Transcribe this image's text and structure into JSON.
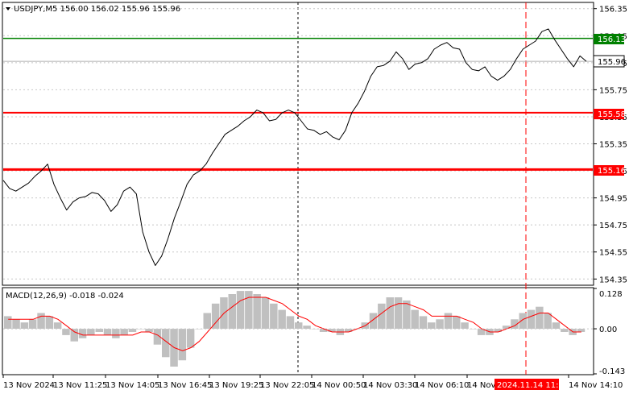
{
  "window": {
    "symbol_info": "USDJPY,M5  156.00 156.02 155.96 155.96"
  },
  "price_axis": {
    "ticks": [
      "156.35",
      "156.15",
      "155.95",
      "155.75",
      "155.55",
      "155.35",
      "155.15",
      "154.95",
      "154.75",
      "154.55",
      "154.35"
    ]
  },
  "price_labels": {
    "resistance": "156.13",
    "current": "155.96",
    "middle": "155.58",
    "support": "155.16"
  },
  "time_axis": {
    "labels": [
      "13 Nov 2024",
      "13 Nov 11:25",
      "13 Nov 14:05",
      "13 Nov 16:45",
      "13 Nov 19:25",
      "13 Nov 22:05",
      "14 Nov 00:50",
      "14 Nov 03:30",
      "14 Nov 06:10",
      "14 Nov",
      "14 Nov 14:10"
    ],
    "highlight": "2024.11.14 11:55"
  },
  "macd": {
    "title": "MACD(12,26,9) -0.018 -0.024",
    "ticks": [
      "0.128",
      "0.00",
      "-0.143"
    ]
  },
  "colors": {
    "price_line": "#000000",
    "resistance": "#008000",
    "support_levels": "#ff0000",
    "macd_hist": "#c0c0c0",
    "macd_signal": "#ff0000",
    "current_label_bg": "#ffffff",
    "highlight_bg": "#ff0000"
  },
  "chart_data": [
    {
      "type": "line",
      "series": [
        {
          "values": [
            155.08,
            155.02,
            155.0,
            155.03,
            155.06,
            155.11,
            155.15,
            155.2,
            155.05,
            154.95,
            154.86,
            154.92,
            154.95,
            154.96,
            154.99,
            154.98,
            154.93,
            154.85,
            154.9,
            155.0,
            155.03,
            154.98,
            154.7,
            154.55,
            154.45,
            154.52,
            154.65,
            154.8,
            154.92,
            155.05,
            155.12,
            155.15,
            155.2,
            155.28,
            155.35,
            155.42,
            155.45,
            155.48,
            155.52,
            155.55,
            155.6,
            155.58,
            155.52,
            155.53,
            155.58,
            155.6,
            155.58,
            155.52,
            155.46,
            155.45,
            155.42,
            155.44,
            155.4,
            155.38,
            155.45,
            155.58,
            155.65,
            155.74,
            155.85,
            155.92,
            155.93,
            155.96,
            156.03,
            155.98,
            155.9,
            155.94,
            155.95,
            155.98,
            156.05,
            156.08,
            156.1,
            156.06,
            156.05,
            155.95,
            155.9,
            155.89,
            155.92,
            155.85,
            155.82,
            155.85,
            155.9,
            155.98,
            156.05,
            156.08,
            156.11,
            156.18,
            156.2,
            156.12,
            156.05,
            155.98,
            155.92,
            156.0,
            155.96
          ]
        }
      ],
      "ylim": [
        154.31,
        156.39
      ],
      "gridlines": true
    },
    {
      "type": "bar",
      "title": "MACD(12,26,9) -0.018 -0.024",
      "series": [
        {
          "values": [
            0.04,
            0.03,
            0.02,
            0.03,
            0.05,
            0.04,
            0.02,
            -0.02,
            -0.04,
            -0.03,
            -0.02,
            -0.01,
            -0.02,
            -0.03,
            -0.02,
            -0.01,
            0.0,
            -0.01,
            -0.05,
            -0.09,
            -0.12,
            -0.1,
            -0.06,
            0.0,
            0.05,
            0.08,
            0.1,
            0.11,
            0.12,
            0.12,
            0.11,
            0.1,
            0.08,
            0.06,
            0.04,
            0.02,
            0.01,
            0.0,
            -0.01,
            -0.01,
            -0.02,
            -0.01,
            0.0,
            0.02,
            0.05,
            0.08,
            0.1,
            0.1,
            0.09,
            0.06,
            0.04,
            0.02,
            0.03,
            0.05,
            0.04,
            0.02,
            0.0,
            -0.02,
            -0.02,
            -0.01,
            0.01,
            0.03,
            0.05,
            0.06,
            0.07,
            0.05,
            0.02,
            -0.01,
            -0.02,
            -0.01
          ]
        },
        {
          "values": [
            0.03,
            0.03,
            0.03,
            0.03,
            0.04,
            0.04,
            0.03,
            0.01,
            -0.01,
            -0.02,
            -0.02,
            -0.02,
            -0.02,
            -0.02,
            -0.02,
            -0.02,
            -0.01,
            -0.01,
            -0.02,
            -0.04,
            -0.06,
            -0.07,
            -0.06,
            -0.04,
            -0.01,
            0.02,
            0.05,
            0.07,
            0.09,
            0.1,
            0.1,
            0.1,
            0.09,
            0.08,
            0.06,
            0.04,
            0.03,
            0.01,
            0.0,
            -0.01,
            -0.01,
            -0.01,
            0.0,
            0.01,
            0.03,
            0.05,
            0.07,
            0.08,
            0.08,
            0.07,
            0.06,
            0.04,
            0.04,
            0.04,
            0.04,
            0.03,
            0.02,
            0.0,
            -0.01,
            -0.01,
            0.0,
            0.01,
            0.03,
            0.04,
            0.05,
            0.05,
            0.03,
            0.01,
            -0.01,
            -0.01
          ]
        }
      ],
      "ylim": [
        -0.143,
        0.128
      ]
    }
  ]
}
